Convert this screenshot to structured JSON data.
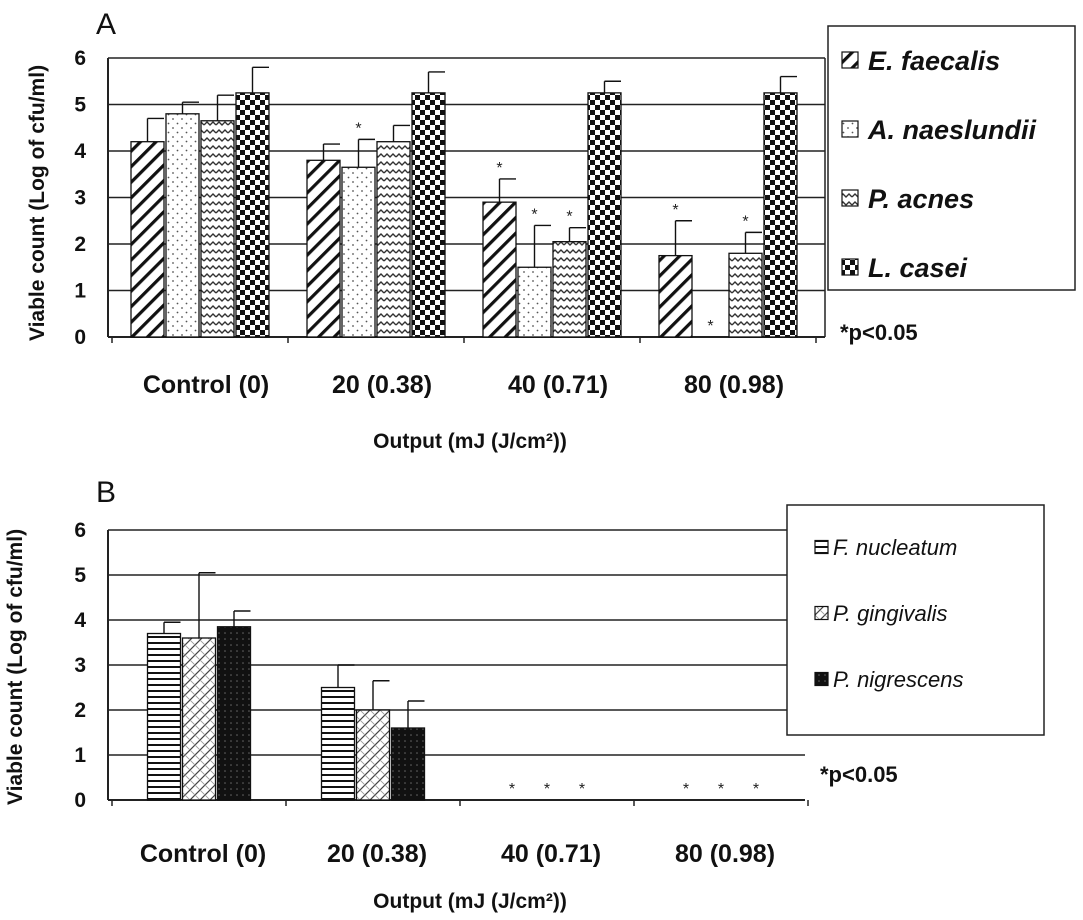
{
  "chart_data": [
    {
      "panel": "A",
      "type": "bar",
      "ylabel": "Viable count (Log of cfu/ml)",
      "xlabel": "Output (mJ (J/cm²))",
      "ylim": [
        0,
        6
      ],
      "yticks": [
        "0",
        "1",
        "2",
        "3",
        "4",
        "5",
        "6"
      ],
      "grid": true,
      "legend_position": "right",
      "categories": [
        "Control (0)",
        "20 (0.38)",
        "40 (0.71)",
        "80 (0.98)"
      ],
      "significance_note": "*p<0.05",
      "series": [
        {
          "name": "E. faecalis",
          "pattern": "diag",
          "values": [
            4.2,
            3.8,
            2.9,
            1.75
          ],
          "errors": [
            0.5,
            0.35,
            0.5,
            0.75
          ],
          "significant": [
            false,
            false,
            true,
            true
          ]
        },
        {
          "name": "A. naeslundii",
          "pattern": "dots",
          "values": [
            4.8,
            3.65,
            1.5,
            0
          ],
          "errors": [
            0.25,
            0.6,
            0.9,
            0
          ],
          "significant": [
            false,
            true,
            true,
            true
          ]
        },
        {
          "name": "P. acnes",
          "pattern": "wave",
          "values": [
            4.65,
            4.2,
            2.05,
            1.8
          ],
          "errors": [
            0.55,
            0.35,
            0.3,
            0.45
          ],
          "significant": [
            false,
            false,
            true,
            true
          ]
        },
        {
          "name": "L. casei",
          "pattern": "check",
          "values": [
            5.25,
            5.25,
            5.25,
            5.25
          ],
          "errors": [
            0.55,
            0.45,
            0.25,
            0.35
          ],
          "significant": [
            false,
            false,
            false,
            false
          ]
        }
      ]
    },
    {
      "panel": "B",
      "type": "bar",
      "ylabel": "Viable count (Log of cfu/ml)",
      "xlabel": "Output (mJ (J/cm²))",
      "ylim": [
        0,
        6
      ],
      "yticks": [
        "0",
        "1",
        "2",
        "3",
        "4",
        "5",
        "6"
      ],
      "grid": true,
      "legend_position": "right",
      "categories": [
        "Control (0)",
        "20 (0.38)",
        "40 (0.71)",
        "80 (0.98)"
      ],
      "significance_note": "*p<0.05",
      "series": [
        {
          "name": "F. nucleatum",
          "pattern": "hlines",
          "values": [
            3.7,
            2.5,
            0,
            0
          ],
          "errors": [
            0.25,
            0.5,
            0,
            0
          ],
          "significant": [
            false,
            false,
            true,
            true
          ]
        },
        {
          "name": "P. gingivalis",
          "pattern": "cross",
          "values": [
            3.6,
            2.0,
            0,
            0
          ],
          "errors": [
            1.45,
            0.65,
            0,
            0
          ],
          "significant": [
            false,
            false,
            true,
            true
          ]
        },
        {
          "name": "P. nigrescens",
          "pattern": "solid",
          "values": [
            3.85,
            1.6,
            0,
            0
          ],
          "errors": [
            0.35,
            0.6,
            0,
            0
          ],
          "significant": [
            false,
            false,
            true,
            true
          ]
        }
      ]
    }
  ]
}
